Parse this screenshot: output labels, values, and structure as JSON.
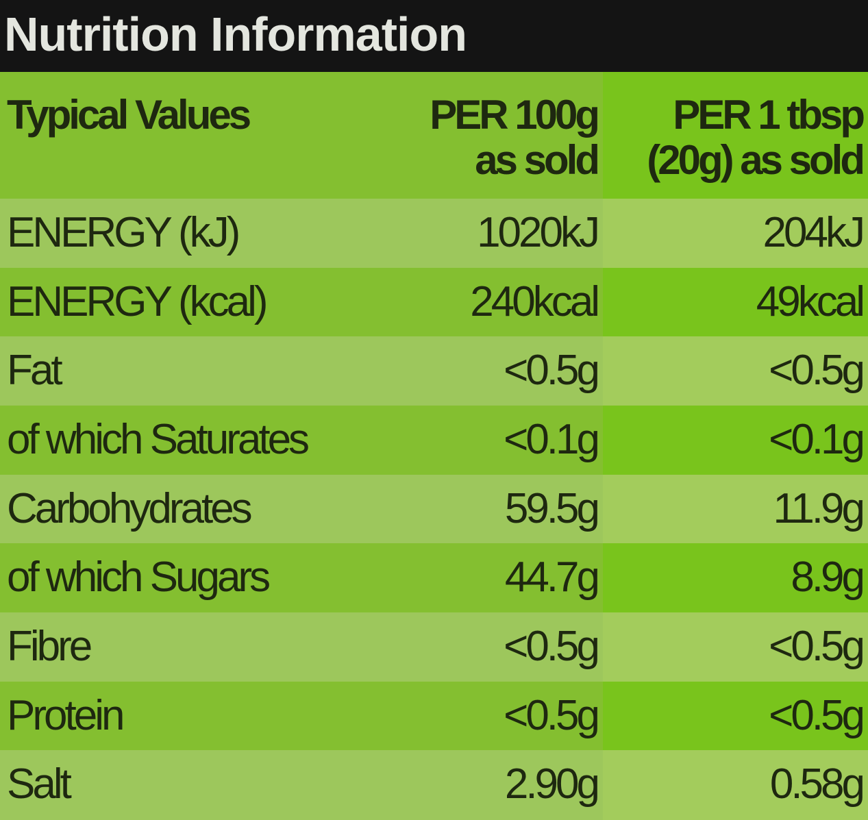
{
  "header": {
    "title": "Nutrition Information"
  },
  "table": {
    "columns": [
      [
        "Typical Values"
      ],
      [
        "PER 100g",
        "as sold"
      ],
      [
        "PER 1 tbsp",
        "(20g) as sold"
      ]
    ],
    "rows": [
      [
        "ENERGY (kJ)",
        "1020kJ",
        "204kJ"
      ],
      [
        "ENERGY (kcal)",
        "240kcal",
        "49kcal"
      ],
      [
        "Fat",
        "<0.5g",
        "<0.5g"
      ],
      [
        "of which Saturates",
        "<0.1g",
        "<0.1g"
      ],
      [
        "Carbohydrates",
        "59.5g",
        "11.9g"
      ],
      [
        "of which Sugars",
        "44.7g",
        "8.9g"
      ],
      [
        "Fibre",
        "<0.5g",
        "<0.5g"
      ],
      [
        "Protein",
        "<0.5g",
        "<0.5g"
      ],
      [
        "Salt",
        "2.90g",
        "0.58g"
      ]
    ]
  }
}
